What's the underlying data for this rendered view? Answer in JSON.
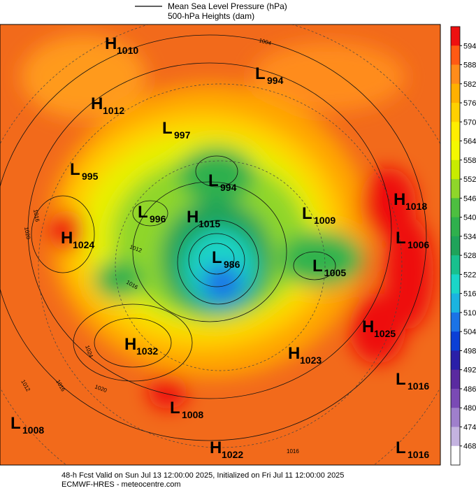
{
  "header": {
    "legend": [
      "Mean Sea Level Pressure (hPa)",
      "500-hPa Heights (dam)"
    ]
  },
  "systems": [
    {
      "kind": "H",
      "value": 1010
    },
    {
      "kind": "L",
      "value": 994
    },
    {
      "kind": "H",
      "value": 1012
    },
    {
      "kind": "L",
      "value": 997
    },
    {
      "kind": "L",
      "value": 995
    },
    {
      "kind": "L",
      "value": 994
    },
    {
      "kind": "H",
      "value": 1018
    },
    {
      "kind": "L",
      "value": 996
    },
    {
      "kind": "H",
      "value": 1015
    },
    {
      "kind": "L",
      "value": 1009
    },
    {
      "kind": "H",
      "value": 1024
    },
    {
      "kind": "L",
      "value": 1006
    },
    {
      "kind": "L",
      "value": 986
    },
    {
      "kind": "L",
      "value": 1005
    },
    {
      "kind": "H",
      "value": 1025
    },
    {
      "kind": "H",
      "value": 1032
    },
    {
      "kind": "H",
      "value": 1023
    },
    {
      "kind": "L",
      "value": 1016
    },
    {
      "kind": "L",
      "value": 1008
    },
    {
      "kind": "L",
      "value": 1008
    },
    {
      "kind": "H",
      "value": 1022
    },
    {
      "kind": "L",
      "value": 1016
    }
  ],
  "contour_labels": [
    1004,
    1016,
    1020,
    1012,
    1016,
    1024,
    1016,
    1020,
    1012,
    1016
  ],
  "colorbar": {
    "ticks": [
      594,
      588,
      582,
      576,
      570,
      564,
      558,
      552,
      546,
      540,
      534,
      528,
      522,
      516,
      510,
      504,
      498,
      492,
      486,
      480,
      474,
      468
    ],
    "colors": [
      "#ee1010",
      "#ff5a14",
      "#ff8c1a",
      "#ffb000",
      "#ffd000",
      "#ffee00",
      "#f4f800",
      "#c8ec00",
      "#8fd62a",
      "#4dbf40",
      "#2fb04d",
      "#1fa35a",
      "#19c08e",
      "#1ad6c8",
      "#1ab4e0",
      "#1a73e6",
      "#0b3fd6",
      "#2a1fa8",
      "#5a2aa0",
      "#7a4ab5",
      "#9f7fcc",
      "#c4b3e0",
      "#ffffff"
    ]
  },
  "footer": [
    "48-h Fcst Valid on Sun Jul 13 12:00:00 2025, Initialized on Fri Jul 11 12:00:00 2025",
    "ECMWF-HRES  - meteocentre.com"
  ]
}
